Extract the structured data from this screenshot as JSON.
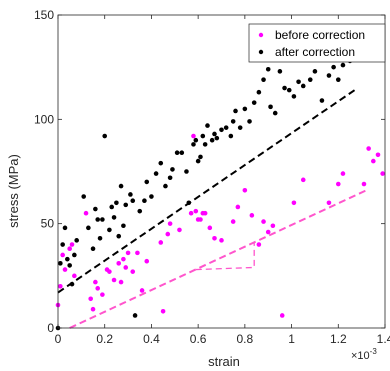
{
  "chart_data": {
    "type": "scatter",
    "title": "",
    "xlabel": "strain",
    "ylabel": "stress (MPa)",
    "x_exponent_label": "×10",
    "x_exponent_power": "-3",
    "x_unit_scale": 0.001,
    "xlim": [
      0,
      1.4
    ],
    "ylim": [
      0,
      150
    ],
    "x_ticks": [
      0,
      0.2,
      0.4,
      0.6,
      0.8,
      1,
      1.2,
      1.4
    ],
    "x_tick_labels": [
      "0",
      "0.2",
      "0.4",
      "0.6",
      "0.8",
      "1",
      "1.2",
      "1.4"
    ],
    "y_ticks": [
      0,
      50,
      100,
      150
    ],
    "y_tick_labels": [
      "0",
      "50",
      "100",
      "150"
    ],
    "grid": false,
    "legend": {
      "placement": "top-right",
      "entries": [
        {
          "label": "before correction",
          "color": "#ff00ff"
        },
        {
          "label": "after correction",
          "color": "#000000"
        }
      ]
    },
    "series": [
      {
        "name": "before correction",
        "color": "#ff00ff",
        "x": [
          0.0,
          0.01,
          0.02,
          0.03,
          0.05,
          0.06,
          0.07,
          0.12,
          0.14,
          0.15,
          0.16,
          0.17,
          0.19,
          0.21,
          0.22,
          0.24,
          0.26,
          0.27,
          0.28,
          0.29,
          0.3,
          0.32,
          0.34,
          0.36,
          0.38,
          0.44,
          0.45,
          0.47,
          0.48,
          0.52,
          0.57,
          0.58,
          0.59,
          0.6,
          0.61,
          0.62,
          0.63,
          0.65,
          0.67,
          0.7,
          0.75,
          0.77,
          0.8,
          0.83,
          0.86,
          0.88,
          0.9,
          0.92,
          0.96,
          1.01,
          1.05,
          1.16,
          1.2,
          1.22,
          1.31,
          1.33,
          1.35,
          1.37,
          1.39
        ],
        "y": [
          11,
          20,
          35,
          28,
          38,
          40,
          25,
          55,
          14,
          9,
          22,
          19,
          16,
          28,
          27,
          23,
          31,
          22,
          33,
          29,
          36,
          27,
          36,
          18,
          32,
          41,
          8,
          45,
          50,
          47,
          55,
          92,
          56,
          52,
          52,
          55,
          55,
          48,
          43,
          42,
          51,
          58,
          66,
          54,
          40,
          51,
          46,
          49,
          6,
          60,
          71,
          60,
          69,
          74,
          69,
          86,
          80,
          83,
          74
        ]
      },
      {
        "name": "after correction",
        "color": "#000000",
        "x": [
          0.0,
          0.01,
          0.02,
          0.03,
          0.04,
          0.05,
          0.06,
          0.07,
          0.08,
          0.11,
          0.13,
          0.15,
          0.16,
          0.17,
          0.18,
          0.19,
          0.2,
          0.22,
          0.23,
          0.24,
          0.25,
          0.26,
          0.27,
          0.28,
          0.29,
          0.31,
          0.32,
          0.33,
          0.35,
          0.37,
          0.38,
          0.4,
          0.42,
          0.44,
          0.46,
          0.48,
          0.49,
          0.51,
          0.53,
          0.55,
          0.56,
          0.58,
          0.59,
          0.6,
          0.61,
          0.62,
          0.63,
          0.64,
          0.66,
          0.67,
          0.68,
          0.7,
          0.72,
          0.74,
          0.75,
          0.76,
          0.78,
          0.8,
          0.82,
          0.84,
          0.86,
          0.88,
          0.9,
          0.91,
          0.93,
          0.95,
          0.97,
          0.99,
          1.01,
          1.03,
          1.05,
          1.08,
          1.1,
          1.13,
          1.16,
          1.18,
          1.2,
          1.22,
          1.25,
          1.3,
          1.33,
          1.36,
          1.38
        ],
        "y": [
          0,
          31,
          40,
          48,
          33,
          30,
          21,
          35,
          42,
          63,
          48,
          38,
          57,
          52,
          43,
          52,
          92,
          47,
          58,
          53,
          60,
          44,
          68,
          49,
          59,
          64,
          61,
          6,
          56,
          61,
          70,
          63,
          74,
          79,
          68,
          72,
          76,
          84,
          84,
          75,
          60,
          88,
          90,
          80,
          82,
          92,
          88,
          97,
          90,
          93,
          91,
          95,
          96,
          92,
          99,
          104,
          96,
          105,
          99,
          108,
          113,
          119,
          124,
          106,
          103,
          123,
          115,
          114,
          111,
          118,
          116,
          119,
          123,
          109,
          121,
          125,
          119,
          126,
          128,
          130,
          136,
          139,
          137
        ]
      }
    ],
    "fit_lines": [
      {
        "color": "#000000",
        "style": "dashed",
        "x": [
          0.0,
          1.27
        ],
        "y": [
          17,
          114
        ]
      },
      {
        "color": "#ff55cc",
        "style": "dashed",
        "x": [
          0.05,
          1.32
        ],
        "y": [
          0,
          66
        ]
      }
    ],
    "slope_triangle": {
      "color": "#ff55cc",
      "style": "dashed",
      "x": [
        0.59,
        0.84,
        0.84
      ],
      "y": [
        28,
        29,
        41
      ]
    }
  }
}
